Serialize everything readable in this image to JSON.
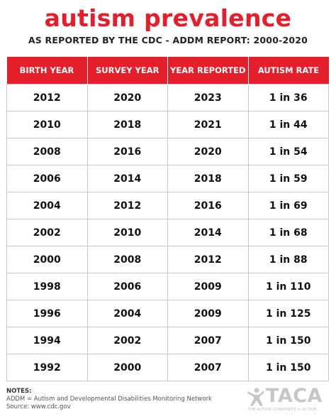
{
  "header": {
    "title": "autism prevalence",
    "subtitle": "AS REPORTED BY THE CDC - ADDM REPORT: 2000-2020"
  },
  "table": {
    "columns": [
      "BIRTH YEAR",
      "SURVEY YEAR",
      "YEAR REPORTED",
      "AUTISM RATE"
    ],
    "rows": [
      [
        "2012",
        "2020",
        "2023",
        "1 in 36"
      ],
      [
        "2010",
        "2018",
        "2021",
        "1 in 44"
      ],
      [
        "2008",
        "2016",
        "2020",
        "1 in 54"
      ],
      [
        "2006",
        "2014",
        "2018",
        "1 in 59"
      ],
      [
        "2004",
        "2012",
        "2016",
        "1 in 69"
      ],
      [
        "2002",
        "2010",
        "2014",
        "1 in 68"
      ],
      [
        "2000",
        "2008",
        "2012",
        "1 in 88"
      ],
      [
        "1998",
        "2006",
        "2009",
        "1 in 110"
      ],
      [
        "1996",
        "2004",
        "2009",
        "1 in 125"
      ],
      [
        "1994",
        "2002",
        "2007",
        "1 in 150"
      ],
      [
        "1992",
        "2000",
        "2007",
        "1 in 150"
      ]
    ]
  },
  "notes": {
    "heading": "NOTES:",
    "lines": [
      "ADDM = Autism and Developmental Disabilities Monitoring Network",
      "Source: www.cdc.gov"
    ]
  },
  "logo": {
    "name": "TACA",
    "tagline": "THE AUTISM COMMUNITY in ACTION",
    "icon": "person-figure-icon"
  },
  "colors": {
    "accent": "#e41e2b",
    "header_text": "#ffffff",
    "grid_line": "#c9c9c9",
    "logo_gray": "#c7c7c7"
  }
}
